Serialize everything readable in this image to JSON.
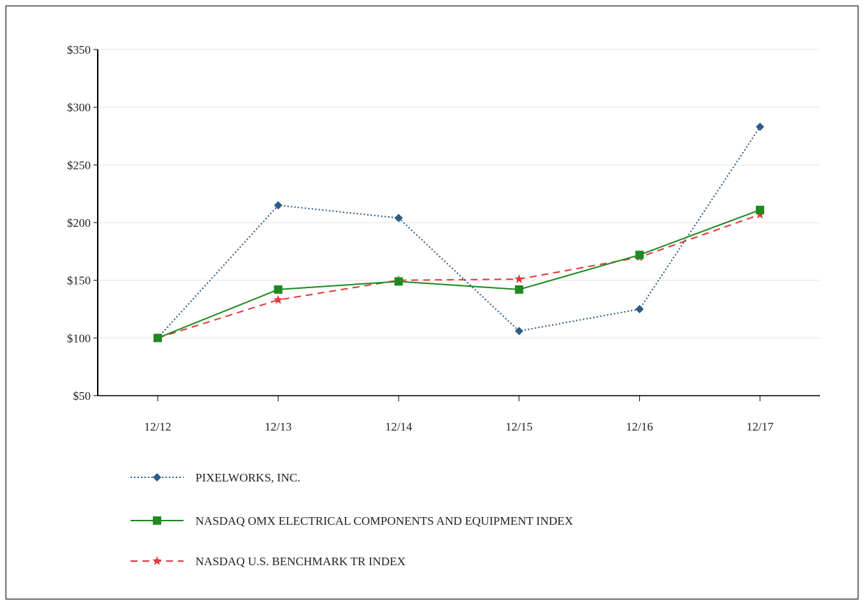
{
  "chart_data": {
    "type": "line",
    "categories": [
      "12/12",
      "12/13",
      "12/14",
      "12/15",
      "12/16",
      "12/17"
    ],
    "y_tick_labels": [
      "$50",
      "$100",
      "$150",
      "$200",
      "$250",
      "$300",
      "$350"
    ],
    "ylim": [
      50,
      350
    ],
    "grid": true,
    "legend_position": "bottom-left",
    "series": [
      {
        "name": "PIXELWORKS, INC.",
        "values": [
          100,
          215,
          204,
          106,
          125,
          283
        ],
        "color": "#2b5c8a",
        "marker": "diamond",
        "line_style": "dotted"
      },
      {
        "name": "NASDAQ OMX ELECTRICAL COMPONENTS AND EQUIPMENT INDEX",
        "values": [
          100,
          142,
          149,
          142,
          172,
          211
        ],
        "color": "#1f8a1f",
        "marker": "square",
        "line_style": "solid"
      },
      {
        "name": "NASDAQ U.S. BENCHMARK TR INDEX",
        "values": [
          100,
          133,
          150,
          151,
          170,
          207
        ],
        "color": "#e03a3a",
        "marker": "star",
        "line_style": "dashed"
      }
    ]
  }
}
